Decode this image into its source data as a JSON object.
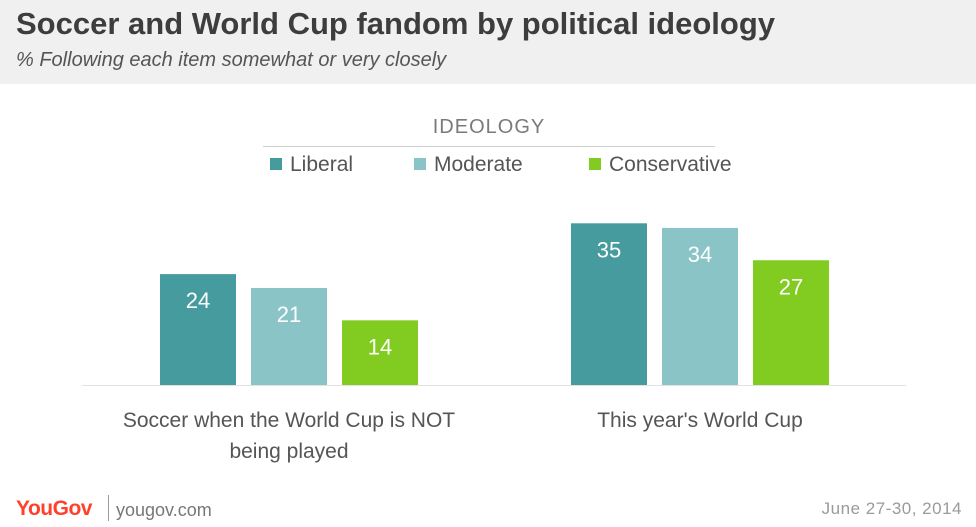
{
  "header": {
    "title": "Soccer and World Cup fandom by political ideology",
    "subtitle": "% Following each item somewhat or very closely"
  },
  "legend": {
    "title": "IDEOLOGY",
    "items": [
      {
        "label": "Liberal",
        "color": "#469b9f"
      },
      {
        "label": "Moderate",
        "color": "#8ac4c7"
      },
      {
        "label": "Conservative",
        "color": "#82cb20"
      }
    ]
  },
  "chart_data": {
    "type": "bar",
    "categories": [
      [
        "Soccer when the World Cup is NOT",
        "being played"
      ],
      [
        "This year's World Cup"
      ]
    ],
    "series": [
      {
        "name": "Liberal",
        "color": "#469b9f",
        "values": [
          24,
          35
        ]
      },
      {
        "name": "Moderate",
        "color": "#8ac4c7",
        "values": [
          21,
          34
        ]
      },
      {
        "name": "Conservative",
        "color": "#82cb20",
        "values": [
          14,
          27
        ]
      }
    ],
    "legend_title": "IDEOLOGY",
    "legend_position": "top-center",
    "data_labels": true,
    "grid": false
  },
  "footer": {
    "logo": "YouGov",
    "url": "yougov.com",
    "date": "June 27-30, 2014"
  }
}
